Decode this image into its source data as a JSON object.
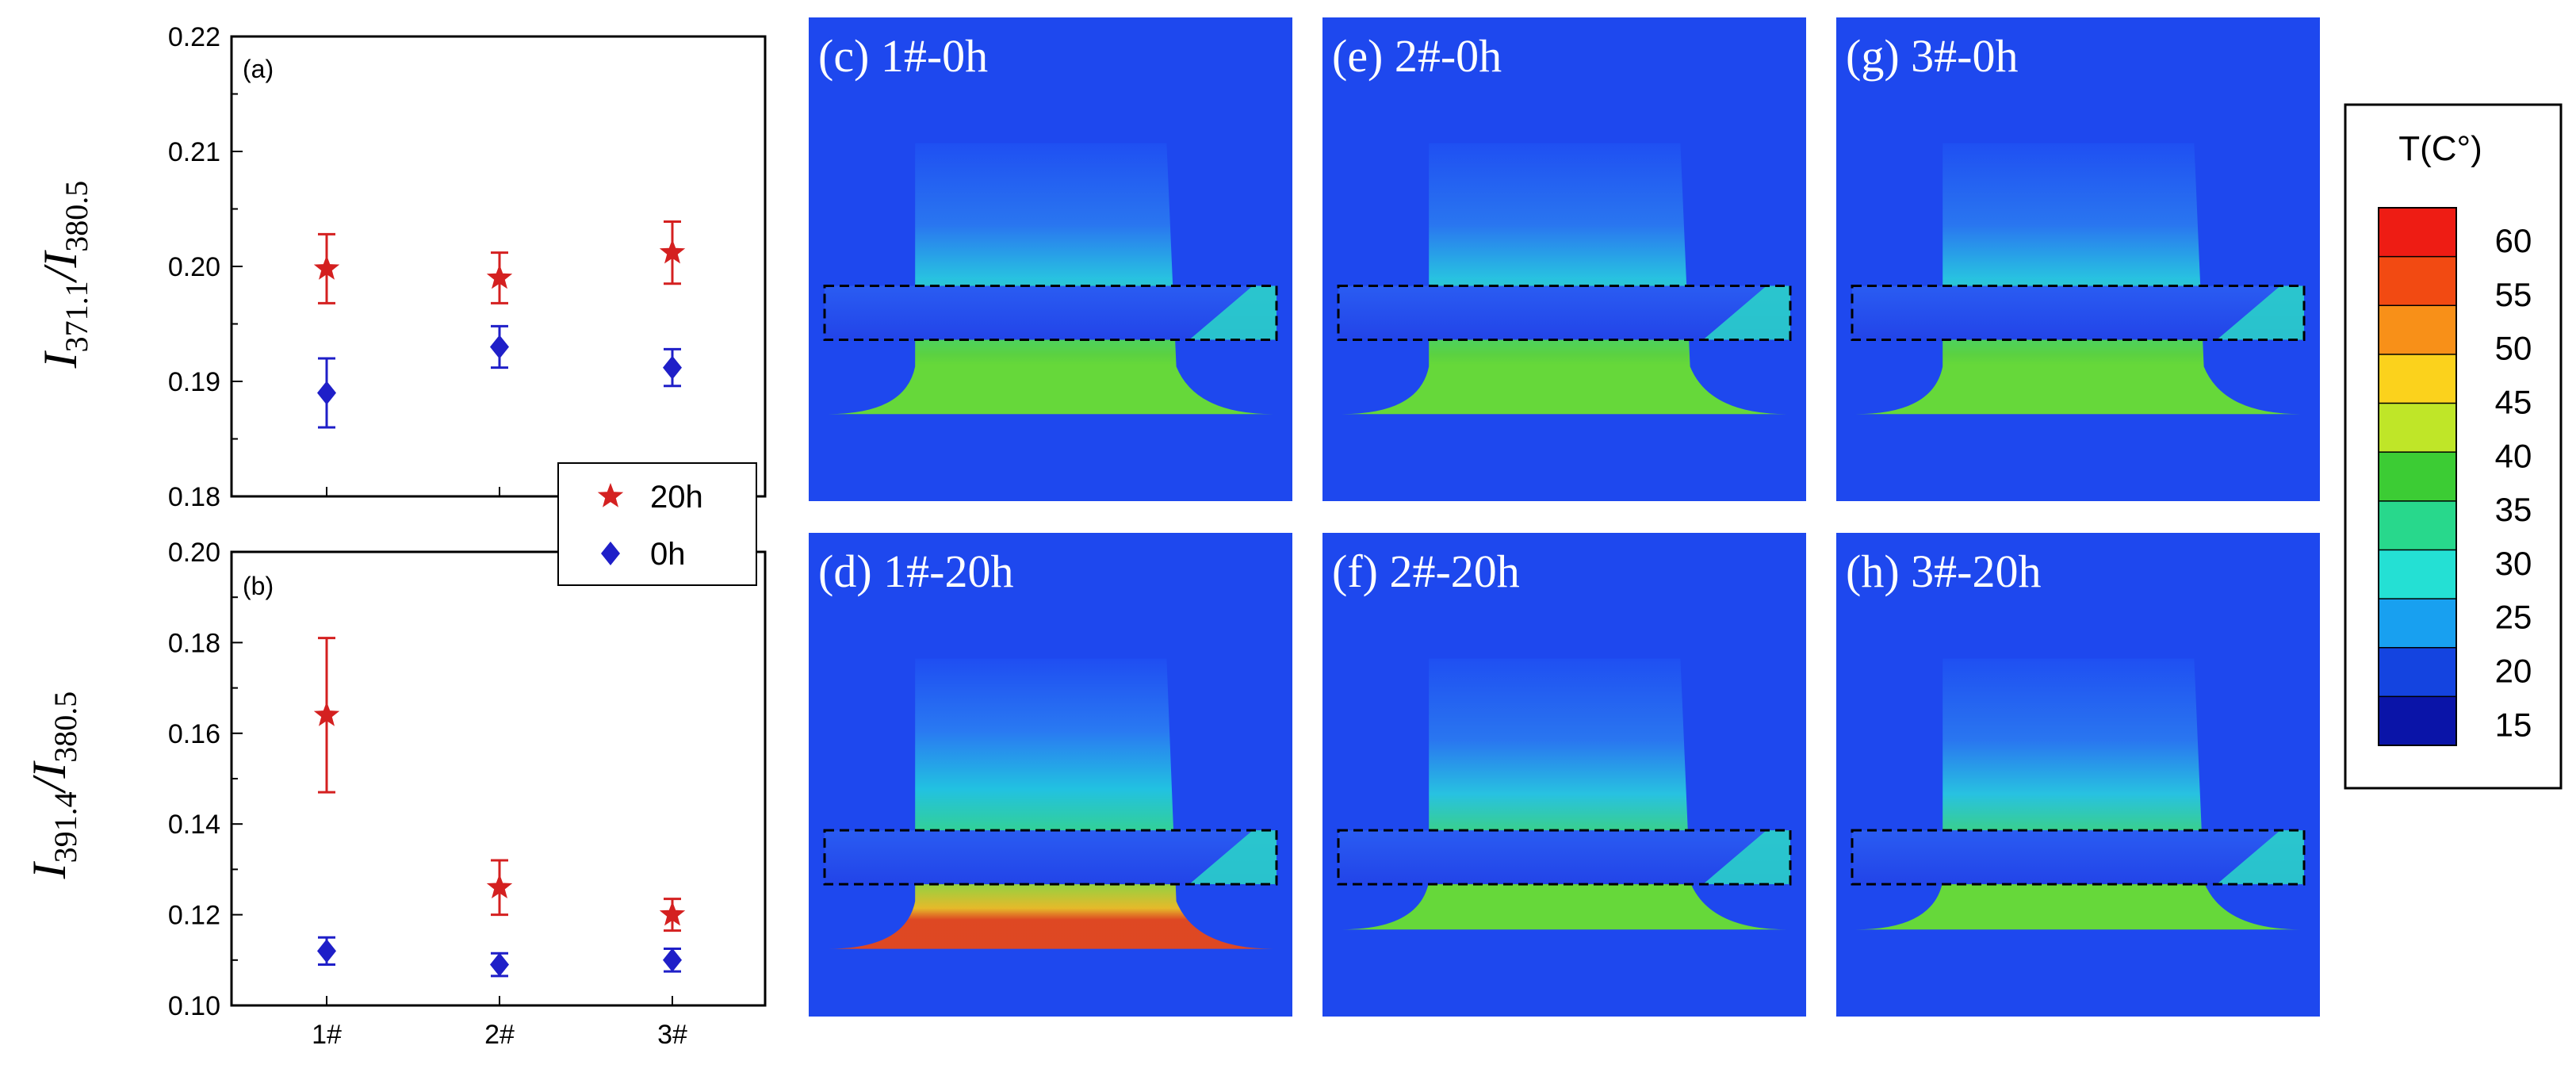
{
  "chart_data": [
    {
      "type": "scatter",
      "panel_label": "(a)",
      "ylabel": {
        "main": "I",
        "sub1": "371.1",
        "slash": "/I",
        "sub2": "380.5"
      },
      "categories": [
        "1#",
        "2#",
        "3#"
      ],
      "ylim": [
        0.18,
        0.22
      ],
      "yticks": [
        "0.18",
        "0.19",
        "0.20",
        "0.21",
        "0.22"
      ],
      "series": [
        {
          "name": "20h",
          "marker": "star",
          "color": "#d42020",
          "values": [
            0.1998,
            0.199,
            0.2012
          ],
          "errors": [
            0.003,
            0.0022,
            0.0027
          ]
        },
        {
          "name": "0h",
          "marker": "diamond",
          "color": "#1f1fc8",
          "values": [
            0.189,
            0.193,
            0.1912
          ],
          "errors": [
            0.003,
            0.0018,
            0.0016
          ]
        }
      ]
    },
    {
      "type": "scatter",
      "panel_label": "(b)",
      "ylabel": {
        "main": "I",
        "sub1": "391.4",
        "slash": "/I",
        "sub2": "380.5"
      },
      "categories": [
        "1#",
        "2#",
        "3#"
      ],
      "ylim": [
        0.1,
        0.2
      ],
      "yticks": [
        "0.10",
        "0.12",
        "0.14",
        "0.16",
        "0.18",
        "0.20"
      ],
      "series": [
        {
          "name": "20h",
          "marker": "star",
          "color": "#d42020",
          "values": [
            0.164,
            0.126,
            0.12
          ],
          "errors": [
            0.017,
            0.006,
            0.0035
          ]
        },
        {
          "name": "0h",
          "marker": "diamond",
          "color": "#1f1fc8",
          "values": [
            0.112,
            0.109,
            0.11
          ],
          "errors": [
            0.003,
            0.0025,
            0.0025
          ]
        }
      ]
    }
  ],
  "legend": [
    {
      "label": "20h",
      "marker": "star",
      "color": "#d42020"
    },
    {
      "label": "0h",
      "marker": "diamond",
      "color": "#1f1fc8"
    }
  ],
  "thermal_images": [
    {
      "label": "(c)  1#-0h",
      "hot": false
    },
    {
      "label": "(e)  2#-0h",
      "hot": false
    },
    {
      "label": "(g)  3#-0h",
      "hot": false
    },
    {
      "label": "(d)  1#-20h",
      "hot": true
    },
    {
      "label": "(f)  2#-20h",
      "hot": false
    },
    {
      "label": "(h)  3#-20h",
      "hot": false
    }
  ],
  "colorbar": {
    "title": "T(C°)",
    "ticks": [
      "60",
      "55",
      "50",
      "45",
      "40",
      "35",
      "30",
      "25",
      "20",
      "15"
    ],
    "colors": [
      "#ee1c14",
      "#f24a12",
      "#f89018",
      "#fbd21c",
      "#bfe628",
      "#3ccc34",
      "#28d88c",
      "#24e0d4",
      "#18a0f0",
      "#1444e0",
      "#0a14a8"
    ]
  }
}
